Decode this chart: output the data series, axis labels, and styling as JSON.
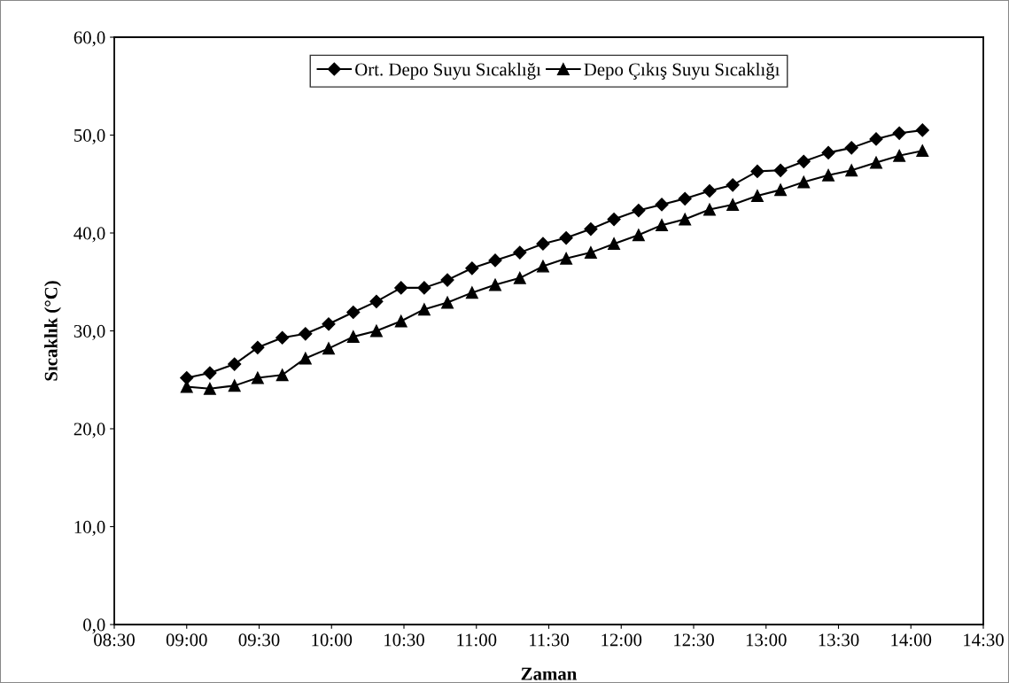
{
  "chart_data": {
    "type": "line",
    "xlabel": "Zaman",
    "ylabel": "Sıcaklık (°C)",
    "x": [
      9.0,
      9.16,
      9.33,
      9.49,
      9.66,
      9.82,
      9.98,
      10.15,
      10.31,
      10.48,
      10.64,
      10.8,
      10.97,
      11.13,
      11.3,
      11.46,
      11.62,
      11.79,
      11.95,
      12.12,
      12.28,
      12.44,
      12.61,
      12.77,
      12.94,
      13.1,
      13.26,
      13.43,
      13.59,
      13.76,
      13.92,
      14.08
    ],
    "series": [
      {
        "name": "Ort. Depo Suyu Sıcaklığı",
        "color": "#000000",
        "marker": "diamond",
        "values": [
          25.2,
          25.7,
          26.6,
          28.3,
          29.3,
          29.7,
          30.7,
          31.9,
          33.0,
          34.4,
          34.4,
          35.2,
          36.4,
          37.2,
          38.0,
          38.9,
          39.5,
          40.4,
          41.4,
          42.3,
          42.9,
          43.5,
          44.3,
          44.9,
          46.3,
          46.4,
          47.3,
          48.2,
          48.7,
          49.6,
          50.2,
          50.5
        ]
      },
      {
        "name": "Depo Çıkış Suyu Sıcaklığı",
        "color": "#000000",
        "marker": "triangle",
        "values": [
          24.3,
          24.1,
          24.4,
          25.2,
          25.5,
          27.2,
          28.2,
          29.4,
          30.0,
          31.0,
          32.2,
          32.9,
          33.9,
          34.7,
          35.4,
          36.6,
          37.4,
          38.0,
          38.9,
          39.8,
          40.8,
          41.4,
          42.4,
          42.9,
          43.8,
          44.4,
          45.2,
          45.9,
          46.4,
          47.2,
          47.9,
          48.4
        ]
      }
    ],
    "xlim": [
      8.5,
      14.5
    ],
    "xticks": [
      {
        "value": 8.5,
        "label": "08:30"
      },
      {
        "value": 9.0,
        "label": "09:00"
      },
      {
        "value": 9.5,
        "label": "09:30"
      },
      {
        "value": 10.0,
        "label": "10:00"
      },
      {
        "value": 10.5,
        "label": "10:30"
      },
      {
        "value": 11.0,
        "label": "11:00"
      },
      {
        "value": 11.5,
        "label": "11:30"
      },
      {
        "value": 12.0,
        "label": "12:00"
      },
      {
        "value": 12.5,
        "label": "12:30"
      },
      {
        "value": 13.0,
        "label": "13:00"
      },
      {
        "value": 13.5,
        "label": "13:30"
      },
      {
        "value": 14.0,
        "label": "14:00"
      },
      {
        "value": 14.5,
        "label": "14:30"
      }
    ],
    "ylim": [
      0,
      60
    ],
    "yticks": [
      {
        "value": 0,
        "label": "0,0"
      },
      {
        "value": 10,
        "label": "10,0"
      },
      {
        "value": 20,
        "label": "20,0"
      },
      {
        "value": 30,
        "label": "30,0"
      },
      {
        "value": 40,
        "label": "40,0"
      },
      {
        "value": 50,
        "label": "50,0"
      },
      {
        "value": 60,
        "label": "60,0"
      }
    ],
    "grid": false,
    "legend": "top",
    "line_style": "solid"
  }
}
